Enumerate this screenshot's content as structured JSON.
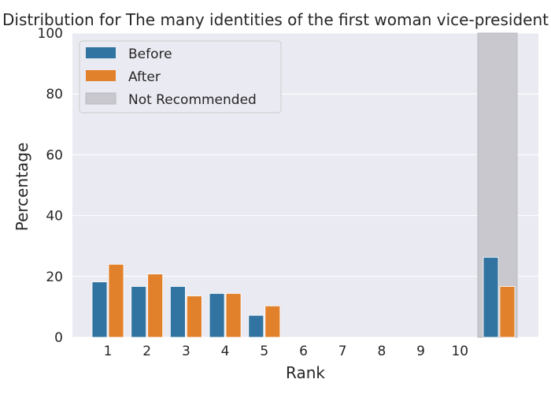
{
  "chart_data": {
    "type": "bar",
    "title": "Distribution for The many identities of the first woman vice-president",
    "xlabel": "Rank",
    "ylabel": "Percentage",
    "ylim": [
      0,
      100
    ],
    "yticks": [
      0,
      20,
      40,
      60,
      80,
      100
    ],
    "categories": [
      "1",
      "2",
      "3",
      "4",
      "5",
      "6",
      "7",
      "8",
      "9",
      "10",
      "Not Recommended"
    ],
    "tick_labels": [
      "1",
      "2",
      "3",
      "4",
      "5",
      "6",
      "7",
      "8",
      "9",
      "10",
      ""
    ],
    "series": [
      {
        "name": "Before",
        "color": "#3274a1",
        "values": [
          18.2,
          16.7,
          16.7,
          14.4,
          7.2,
          0,
          0,
          0,
          0,
          0,
          26.3
        ]
      },
      {
        "name": "After",
        "color": "#e1812c",
        "values": [
          24.0,
          20.8,
          13.6,
          14.4,
          10.3,
          0,
          0,
          0,
          0,
          0,
          16.7
        ]
      }
    ],
    "shaded_region": {
      "category": "Not Recommended",
      "label": "Not Recommended",
      "color": "#c8c8ce"
    },
    "legend": {
      "placement": "top-left"
    },
    "grid": true,
    "background": "#eaeaf2"
  }
}
